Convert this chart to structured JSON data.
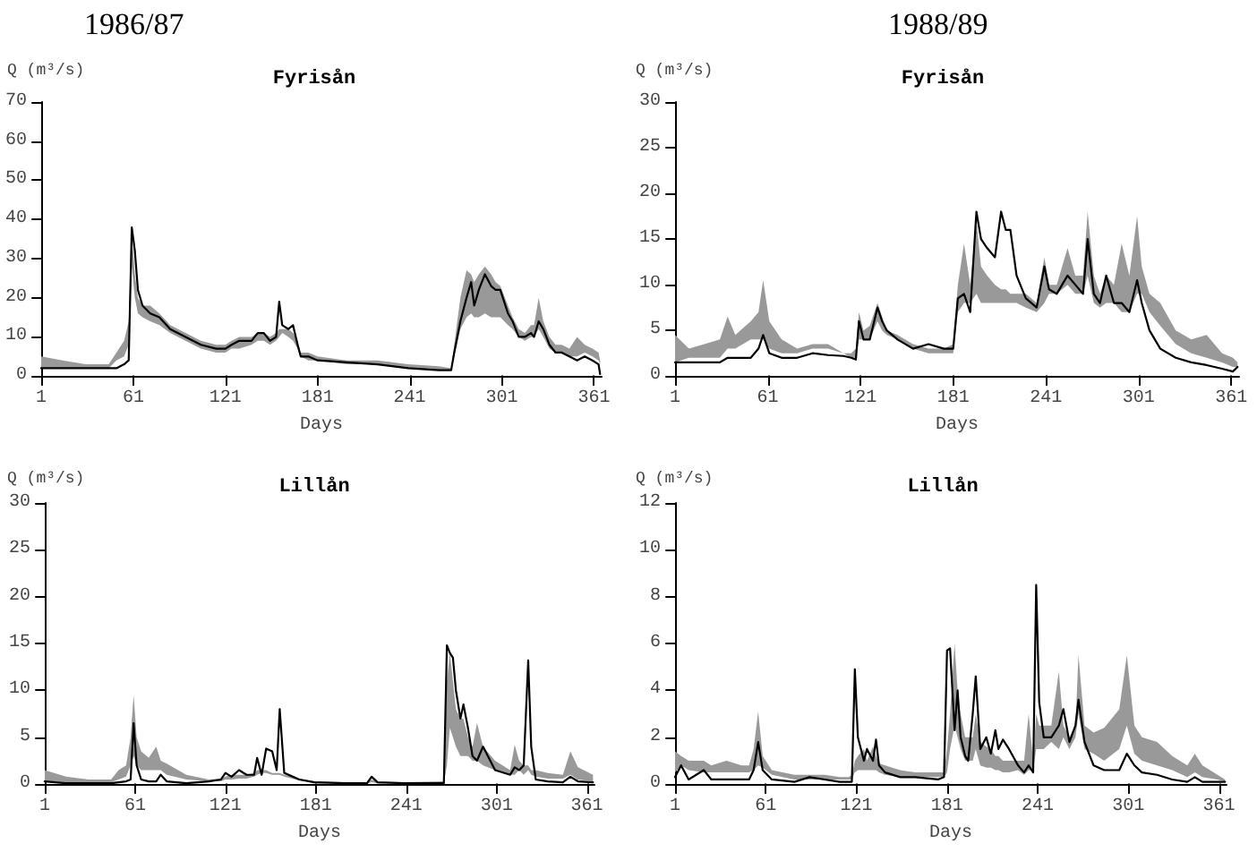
{
  "chart_data": [
    {
      "type": "line",
      "subtitle": "1986/87",
      "title": "Fyrisån",
      "xlabel": "Days",
      "ylabel": "Q (m³/s)",
      "xlim": [
        1,
        366
      ],
      "xticks": [
        1,
        61,
        121,
        181,
        241,
        301,
        361
      ],
      "ylim": [
        0,
        70
      ],
      "yticks": [
        0,
        10,
        20,
        30,
        40,
        50,
        60,
        70
      ],
      "series": [
        {
          "color": "#000000",
          "x": [
            1,
            15,
            30,
            45,
            50,
            55,
            58,
            60,
            62,
            64,
            67,
            72,
            78,
            85,
            95,
            105,
            115,
            121,
            125,
            130,
            138,
            142,
            146,
            150,
            154,
            156,
            158,
            162,
            165,
            168,
            170,
            175,
            181,
            200,
            220,
            240,
            260,
            268,
            270,
            274,
            278,
            281,
            283,
            286,
            290,
            294,
            297,
            300,
            305,
            308,
            312,
            316,
            320,
            322,
            325,
            328,
            332,
            336,
            340,
            345,
            350,
            355,
            360,
            364,
            365
          ],
          "values": [
            2,
            2,
            2,
            2,
            2,
            3,
            4,
            38,
            32,
            22,
            18,
            16,
            15,
            12,
            10,
            8,
            7,
            7,
            8,
            9,
            9,
            11,
            11,
            9,
            10,
            19,
            13,
            12,
            13,
            8,
            5,
            5,
            4,
            3.5,
            3,
            2,
            1.5,
            1.5,
            6,
            14,
            20,
            24,
            18,
            22,
            26,
            23,
            22,
            22,
            16,
            14,
            10,
            10,
            11,
            10,
            14,
            12,
            8,
            6,
            6,
            5,
            4,
            5,
            4,
            3,
            0.5
          ],
          "lower": [
            2,
            2,
            2,
            2,
            4,
            5,
            8,
            28,
            20,
            16,
            15,
            14,
            13,
            11,
            9,
            7,
            6,
            6,
            7,
            7,
            8,
            9,
            9,
            8,
            9,
            10,
            11,
            10,
            9,
            7,
            5,
            4,
            4,
            3,
            3,
            2,
            1.5,
            1.5,
            5,
            12,
            15,
            16,
            15,
            15,
            16,
            15,
            15,
            15,
            13,
            12,
            10,
            9,
            10,
            10,
            12,
            10,
            7,
            6,
            6,
            5,
            5,
            6,
            5,
            4,
            3
          ],
          "upper": [
            5,
            4,
            3,
            3,
            6,
            9,
            14,
            36,
            26,
            20,
            18,
            18,
            16,
            13,
            11,
            9,
            8,
            8,
            9,
            10,
            10,
            11,
            11,
            10,
            11,
            12,
            12,
            12,
            11,
            9,
            6,
            6,
            5,
            4,
            4,
            3,
            2.5,
            2,
            8,
            20,
            27,
            26,
            24,
            26,
            28,
            26,
            24,
            23,
            18,
            15,
            12,
            11,
            13,
            13,
            20,
            14,
            10,
            8,
            8,
            7,
            10,
            8,
            7,
            6,
            4
          ]
        }
      ]
    },
    {
      "type": "line",
      "subtitle": "1988/89",
      "title": "Fyrisån",
      "xlabel": "Days",
      "ylabel": "Q (m³/s)",
      "xlim": [
        1,
        366
      ],
      "xticks": [
        1,
        61,
        121,
        181,
        241,
        301,
        361
      ],
      "ylim": [
        0,
        30
      ],
      "yticks": [
        0,
        5,
        10,
        15,
        20,
        25,
        30
      ],
      "series": [
        {
          "color": "#000000",
          "x": [
            1,
            10,
            20,
            30,
            35,
            40,
            50,
            55,
            58,
            62,
            70,
            80,
            90,
            100,
            110,
            115,
            118,
            120,
            123,
            127,
            132,
            135,
            138,
            145,
            155,
            165,
            175,
            181,
            184,
            188,
            192,
            196,
            199,
            203,
            208,
            212,
            215,
            218,
            222,
            228,
            235,
            240,
            243,
            248,
            255,
            260,
            265,
            268,
            272,
            276,
            280,
            285,
            290,
            295,
            300,
            303,
            308,
            315,
            325,
            335,
            345,
            355,
            362,
            365
          ],
          "values": [
            1.5,
            1.5,
            1.5,
            1.5,
            2,
            2,
            2,
            3,
            4.5,
            2.5,
            2,
            2,
            2.5,
            2.3,
            2.2,
            2,
            1.8,
            6,
            4,
            4,
            7.5,
            6,
            5,
            4,
            3,
            3.5,
            3,
            3,
            8.5,
            9,
            7,
            18,
            15,
            14,
            13,
            18,
            16,
            16,
            11,
            8.5,
            7.5,
            12,
            9.5,
            9,
            11,
            10,
            9,
            15,
            9,
            8,
            11,
            8,
            8,
            7,
            10.5,
            8,
            5,
            3,
            2,
            1.5,
            1.2,
            0.8,
            0.5,
            1
          ],
          "lower": [
            1.5,
            2,
            2,
            2,
            3,
            3,
            4,
            4,
            4,
            3,
            2.5,
            2.5,
            3,
            3,
            2.5,
            2,
            2,
            4,
            4,
            4,
            6,
            5,
            4.5,
            4,
            3,
            2.5,
            2.5,
            2.5,
            7,
            8,
            8,
            9,
            8,
            8,
            8,
            8,
            8,
            8,
            8,
            7.5,
            7,
            8,
            9,
            9,
            10,
            9,
            9,
            11,
            8,
            7.5,
            8,
            8,
            7,
            7,
            9,
            9,
            7,
            5.5,
            3.5,
            2.5,
            2,
            1.5,
            1,
            1
          ],
          "upper": [
            4.5,
            3,
            3.5,
            4,
            6.5,
            4.5,
            6,
            7,
            10.5,
            6,
            4,
            3,
            3.5,
            3.5,
            2.5,
            2.5,
            3,
            7,
            5,
            5.5,
            8,
            6.5,
            5,
            4.5,
            3.5,
            3,
            3,
            3.5,
            10,
            14.5,
            10,
            17,
            12,
            11,
            10,
            9.5,
            9.5,
            9,
            9,
            9,
            8,
            13,
            10,
            10,
            14,
            11,
            11,
            18,
            11,
            9,
            11,
            10,
            14.5,
            11,
            17.5,
            12,
            9,
            8,
            5,
            4,
            4.5,
            2.5,
            2,
            1.5
          ]
        }
      ]
    },
    {
      "type": "line",
      "title": "Lillån",
      "xlabel": "Days",
      "ylabel": "Q (m³/s)",
      "xlim": [
        1,
        366
      ],
      "xticks": [
        1,
        61,
        121,
        181,
        241,
        301,
        361
      ],
      "ylim": [
        0,
        30
      ],
      "yticks": [
        0,
        5,
        10,
        15,
        20,
        25,
        30
      ],
      "series": [
        {
          "color": "#000000",
          "x": [
            1,
            15,
            30,
            45,
            50,
            55,
            58,
            60,
            62,
            65,
            70,
            75,
            78,
            82,
            95,
            110,
            118,
            121,
            125,
            130,
            135,
            140,
            142,
            145,
            148,
            152,
            155,
            157,
            160,
            170,
            180,
            200,
            215,
            218,
            222,
            240,
            266,
            268,
            270,
            272,
            274,
            277,
            279,
            282,
            285,
            288,
            292,
            300,
            310,
            313,
            316,
            319,
            322,
            324,
            327,
            335,
            345,
            350,
            355,
            365
          ],
          "values": [
            0.3,
            0.1,
            0.1,
            0.1,
            0.2,
            0.3,
            0.5,
            6.5,
            2,
            0.5,
            0.3,
            0.3,
            1,
            0.3,
            0.1,
            0.3,
            0.5,
            1.2,
            0.8,
            1.5,
            1,
            1,
            2.8,
            1,
            3.8,
            3.5,
            1.5,
            8,
            1.2,
            0.5,
            0.2,
            0.1,
            0.1,
            0.8,
            0.2,
            0.1,
            0.1,
            14.8,
            14,
            13.5,
            10,
            7,
            8.5,
            6,
            3,
            2.5,
            4,
            1.5,
            1,
            1.8,
            1.5,
            2,
            13.2,
            4,
            0.5,
            0.3,
            0.2,
            0.8,
            0.3,
            0.2
          ],
          "lower": [
            0.3,
            0.2,
            0.1,
            0.2,
            0.5,
            0.8,
            2,
            3,
            2,
            1.5,
            1.5,
            1.5,
            1.5,
            1,
            0.5,
            0.3,
            0.3,
            0.5,
            0.5,
            0.6,
            0.6,
            0.8,
            1,
            1.2,
            1.2,
            1,
            1,
            1,
            0.8,
            0.4,
            0.2,
            0.1,
            0.1,
            0.2,
            0.1,
            0.1,
            0.1,
            2,
            6,
            5,
            4,
            3,
            3,
            3,
            2.5,
            2.5,
            2,
            1.5,
            1,
            1,
            1.5,
            1,
            1.5,
            1,
            0.8,
            0.6,
            0.6,
            1,
            0.5,
            0.3
          ],
          "upper": [
            1.5,
            0.8,
            0.5,
            0.5,
            1.5,
            2,
            5,
            9.5,
            5,
            3.5,
            2.8,
            4,
            2.5,
            2.2,
            1,
            0.5,
            0.6,
            0.8,
            1,
            1,
            1,
            1.2,
            1.5,
            1.5,
            1.5,
            1.2,
            1.2,
            1.2,
            1,
            0.6,
            0.3,
            0.2,
            0.2,
            0.5,
            0.2,
            0.2,
            0.3,
            11,
            14,
            11,
            8,
            7,
            7,
            5,
            4,
            6.5,
            4,
            2.5,
            1.5,
            4.2,
            2.5,
            2,
            2,
            1.5,
            1.5,
            1.2,
            1,
            3.5,
            1.8,
            1
          ]
        }
      ]
    },
    {
      "type": "line",
      "title": "Lillån",
      "xlabel": "Days",
      "ylabel": "Q (m³/s)",
      "xlim": [
        1,
        366
      ],
      "xticks": [
        1,
        61,
        121,
        181,
        241,
        301,
        361
      ],
      "ylim": [
        0,
        12
      ],
      "yticks": [
        0,
        2,
        4,
        6,
        8,
        10,
        12
      ],
      "series": [
        {
          "color": "#000000",
          "x": [
            1,
            5,
            10,
            20,
            25,
            35,
            45,
            50,
            53,
            56,
            59,
            65,
            80,
            90,
            100,
            110,
            116,
            118,
            120,
            122,
            126,
            128,
            132,
            134,
            136,
            140,
            150,
            160,
            175,
            179,
            181,
            183,
            186,
            188,
            190,
            193,
            195,
            198,
            200,
            203,
            207,
            210,
            213,
            215,
            218,
            222,
            228,
            232,
            235,
            238,
            240,
            242,
            245,
            250,
            255,
            258,
            262,
            266,
            268,
            272,
            278,
            285,
            295,
            300,
            305,
            310,
            320,
            330,
            340,
            345,
            350,
            360,
            365
          ],
          "values": [
            0.3,
            0.8,
            0.2,
            0.6,
            0.2,
            0.2,
            0.2,
            0.2,
            0.6,
            1.8,
            0.6,
            0.2,
            0.1,
            0.3,
            0.2,
            0.1,
            0.1,
            0.1,
            4.9,
            2,
            1,
            1.5,
            1,
            1.9,
            0.8,
            0.5,
            0.3,
            0.3,
            0.2,
            0.3,
            5.7,
            5.8,
            2.3,
            4,
            2,
            1.2,
            1,
            3,
            4.6,
            1.5,
            2,
            1.3,
            2.3,
            1.5,
            1.9,
            1.5,
            0.8,
            0.5,
            0.8,
            0.5,
            8.5,
            3.5,
            2,
            2,
            2.5,
            3.2,
            1.8,
            2.5,
            3.6,
            1.8,
            0.8,
            0.6,
            0.6,
            1.3,
            0.8,
            0.5,
            0.4,
            0.2,
            0.1,
            0.3,
            0.1,
            0.1,
            0.1
          ],
          "lower": [
            0.5,
            0.8,
            0.6,
            0.5,
            0.5,
            0.5,
            0.5,
            0.5,
            0.6,
            0.8,
            0.7,
            0.4,
            0.2,
            0.2,
            0.2,
            0.2,
            0.2,
            0.2,
            0.5,
            0.6,
            0.6,
            0.6,
            0.6,
            0.6,
            0.5,
            0.4,
            0.3,
            0.3,
            0.3,
            0.3,
            0.5,
            1.5,
            2.5,
            2,
            1.5,
            1,
            1,
            1,
            1.5,
            0.8,
            0.7,
            0.7,
            0.6,
            0.6,
            0.5,
            0.5,
            0.6,
            0.4,
            0.6,
            0.6,
            1.5,
            1.5,
            1.5,
            1.8,
            1.5,
            2,
            1.5,
            2,
            3,
            1.5,
            1.3,
            1,
            1.5,
            2.5,
            1.3,
            1,
            0.8,
            0.6,
            0.3,
            0.5,
            0.3,
            0.2,
            0.1
          ],
          "upper": [
            1.4,
            1.2,
            1,
            1,
            0.8,
            1,
            0.8,
            0.8,
            1.5,
            3.1,
            1.2,
            0.6,
            0.4,
            0.4,
            0.4,
            0.3,
            0.3,
            0.4,
            1,
            1.2,
            1.5,
            1,
            1.6,
            1.2,
            0.9,
            0.8,
            0.6,
            0.5,
            0.5,
            0.5,
            1.5,
            3,
            6,
            4,
            3,
            2,
            2,
            2,
            3,
            1.8,
            1.6,
            1.5,
            1.2,
            1.2,
            1,
            1,
            1,
            1,
            3,
            1,
            3,
            2.5,
            2.5,
            2.5,
            4.8,
            2.5,
            2,
            2.5,
            5.5,
            2.5,
            2.2,
            2.4,
            3.2,
            5.5,
            2.5,
            2,
            1.8,
            1.2,
            0.8,
            1.3,
            0.8,
            0.4,
            0.2
          ]
        }
      ]
    }
  ]
}
